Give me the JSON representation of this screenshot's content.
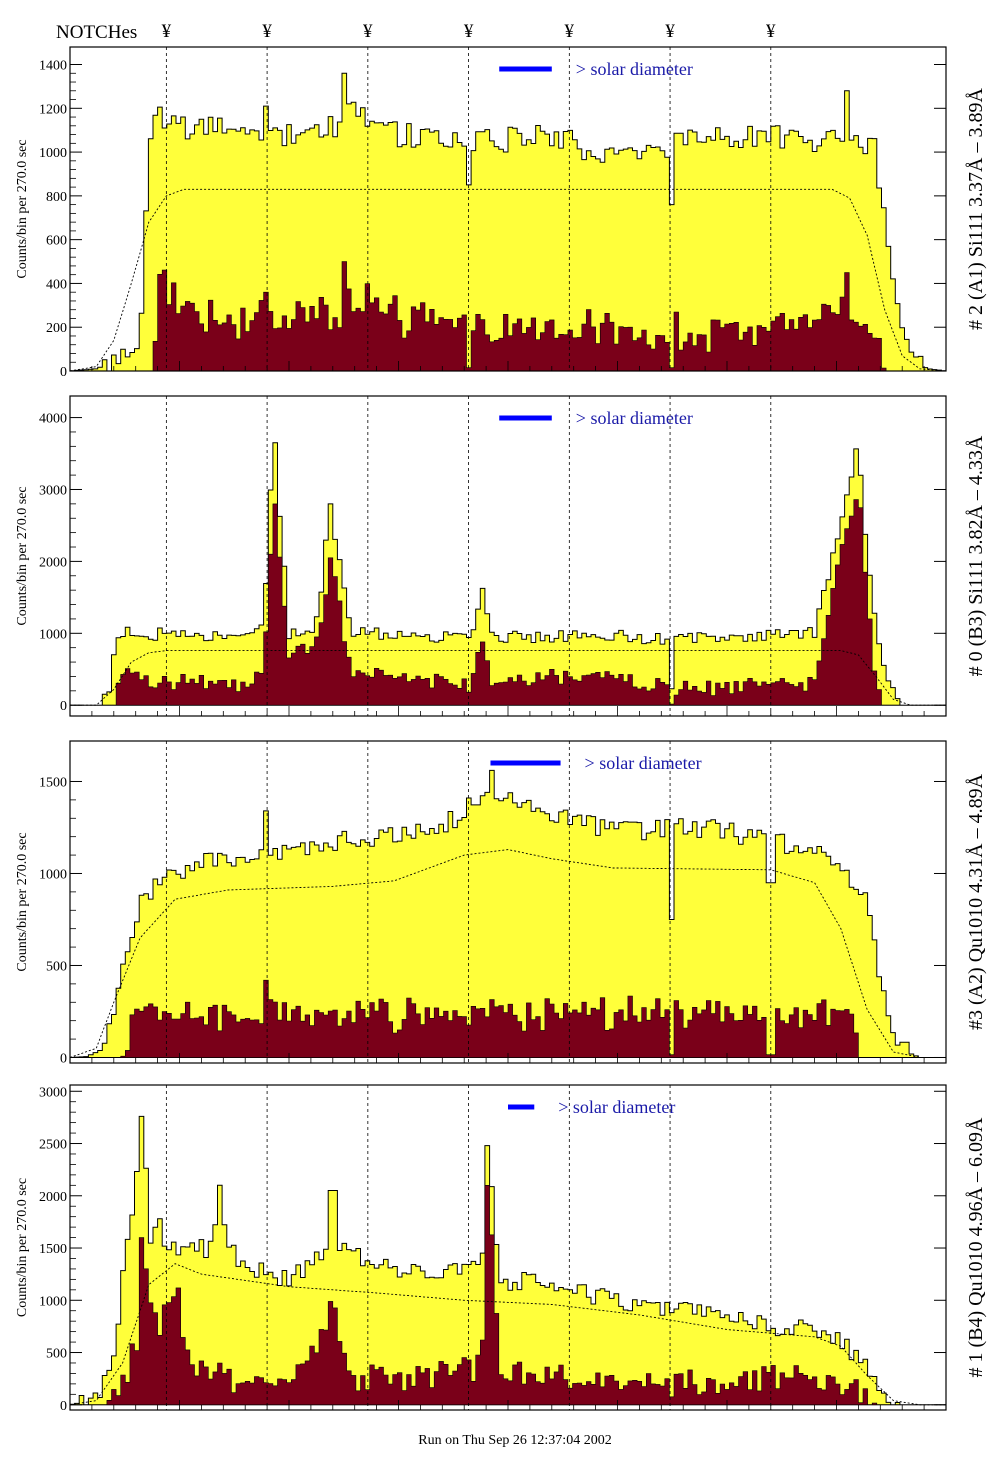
{
  "header": {
    "notches_label": "NOTCHes",
    "notch_symbol": "¥",
    "notch_count": 7,
    "run_stamp": "Run on Thu Sep 26 12:37:04 2002"
  },
  "colors": {
    "fill_total": "#ffff3a",
    "fill_sub": "#7a0019",
    "bar_blue": "#0000ff",
    "label_blue": "#1a1aa8",
    "text": "#000000"
  },
  "chart_data": [
    {
      "type": "area",
      "title": "# 2 (A1) Si111  3.37Å – 3.89Å",
      "ylabel": "Counts/bin per    270.0 sec",
      "annotation": "> solar diameter",
      "ylim": [
        0,
        1480
      ],
      "yticks": [
        0,
        200,
        400,
        600,
        800,
        1000,
        1200,
        1400
      ],
      "ytick_labels": [
        "0",
        "200",
        "400",
        "600",
        "800",
        "1000",
        "1200",
        "1400"
      ],
      "solar_bar_span": [
        0.49,
        0.55
      ],
      "notch_x": [
        0.11,
        0.225,
        0.34,
        0.455,
        0.57,
        0.685,
        0.8
      ],
      "total_profile": [
        [
          0.0,
          0
        ],
        [
          0.03,
          10
        ],
        [
          0.06,
          60
        ],
        [
          0.08,
          160
        ],
        [
          0.09,
          1000
        ],
        [
          0.1,
          1180
        ],
        [
          0.13,
          1110
        ],
        [
          0.22,
          1080
        ],
        [
          0.3,
          1110
        ],
        [
          0.32,
          1200
        ],
        [
          0.36,
          1090
        ],
        [
          0.45,
          1050
        ],
        [
          0.55,
          1070
        ],
        [
          0.6,
          1000
        ],
        [
          0.75,
          1060
        ],
        [
          0.9,
          1060
        ],
        [
          0.92,
          1000
        ],
        [
          0.94,
          380
        ],
        [
          0.96,
          40
        ],
        [
          0.98,
          10
        ],
        [
          1.0,
          0
        ]
      ],
      "total_noise": 60,
      "sub_profile": [
        [
          0.0,
          0
        ],
        [
          0.08,
          0
        ],
        [
          0.095,
          0
        ],
        [
          0.1,
          420
        ],
        [
          0.13,
          300
        ],
        [
          0.2,
          230
        ],
        [
          0.32,
          280
        ],
        [
          0.34,
          360
        ],
        [
          0.36,
          240
        ],
        [
          0.5,
          200
        ],
        [
          0.62,
          180
        ],
        [
          0.8,
          170
        ],
        [
          0.87,
          300
        ],
        [
          0.91,
          250
        ],
        [
          0.93,
          0
        ],
        [
          1.0,
          0
        ]
      ],
      "sub_noise": 70,
      "spikes": [
        [
          0.225,
          1210,
          360
        ],
        [
          0.315,
          1360,
          500
        ],
        [
          0.885,
          1280,
          450
        ]
      ],
      "dips": [
        [
          0.455,
          850
        ],
        [
          0.685,
          760
        ]
      ],
      "model_curve": [
        [
          0.0,
          0
        ],
        [
          0.03,
          20
        ],
        [
          0.05,
          140
        ],
        [
          0.07,
          400
        ],
        [
          0.09,
          680
        ],
        [
          0.11,
          800
        ],
        [
          0.13,
          830
        ],
        [
          0.87,
          830
        ],
        [
          0.89,
          790
        ],
        [
          0.91,
          620
        ],
        [
          0.93,
          280
        ],
        [
          0.95,
          70
        ],
        [
          0.97,
          10
        ],
        [
          1.0,
          0
        ]
      ]
    },
    {
      "type": "area",
      "title": "# 0 (B3) Si111  3.82Å – 4.33Å",
      "ylabel": "Counts/bin per    270.0 sec",
      "annotation": "> solar diameter",
      "ylim": [
        -150,
        4300
      ],
      "yticks": [
        0,
        1000,
        2000,
        3000,
        4000
      ],
      "ytick_labels": [
        "0",
        "1000",
        "2000",
        "3000",
        "4000"
      ],
      "solar_bar_span": [
        0.49,
        0.55
      ],
      "notch_x": [
        0.11,
        0.225,
        0.34,
        0.455,
        0.57,
        0.685,
        0.8
      ],
      "total_profile": [
        [
          0.0,
          0
        ],
        [
          0.03,
          0
        ],
        [
          0.045,
          150
        ],
        [
          0.05,
          700
        ],
        [
          0.06,
          1000
        ],
        [
          0.2,
          950
        ],
        [
          0.22,
          1200
        ],
        [
          0.235,
          3400
        ],
        [
          0.25,
          1000
        ],
        [
          0.28,
          1100
        ],
        [
          0.3,
          2600
        ],
        [
          0.32,
          1000
        ],
        [
          0.46,
          950
        ],
        [
          0.47,
          1700
        ],
        [
          0.48,
          950
        ],
        [
          0.62,
          950
        ],
        [
          0.63,
          1150
        ],
        [
          0.64,
          900
        ],
        [
          0.85,
          1000
        ],
        [
          0.88,
          2500
        ],
        [
          0.9,
          3700
        ],
        [
          0.91,
          2000
        ],
        [
          0.93,
          400
        ],
        [
          0.95,
          0
        ],
        [
          1.0,
          0
        ]
      ],
      "total_noise": 90,
      "sub_profile": [
        [
          0.0,
          0
        ],
        [
          0.05,
          0
        ],
        [
          0.06,
          480
        ],
        [
          0.08,
          350
        ],
        [
          0.2,
          300
        ],
        [
          0.22,
          500
        ],
        [
          0.235,
          2700
        ],
        [
          0.25,
          700
        ],
        [
          0.28,
          900
        ],
        [
          0.3,
          2000
        ],
        [
          0.32,
          450
        ],
        [
          0.46,
          300
        ],
        [
          0.47,
          900
        ],
        [
          0.48,
          300
        ],
        [
          0.63,
          450
        ],
        [
          0.65,
          250
        ],
        [
          0.85,
          300
        ],
        [
          0.88,
          2200
        ],
        [
          0.9,
          3000
        ],
        [
          0.91,
          1600
        ],
        [
          0.92,
          200
        ],
        [
          0.93,
          0
        ],
        [
          1.0,
          0
        ]
      ],
      "sub_noise": 90,
      "spikes": [
        [
          0.233,
          3650,
          2800
        ],
        [
          0.298,
          2800,
          2050
        ]
      ],
      "dips": [
        [
          0.685,
          230
        ]
      ],
      "model_curve": [
        [
          0.0,
          0
        ],
        [
          0.03,
          0
        ],
        [
          0.05,
          220
        ],
        [
          0.07,
          600
        ],
        [
          0.09,
          730
        ],
        [
          0.11,
          760
        ],
        [
          0.88,
          760
        ],
        [
          0.9,
          700
        ],
        [
          0.92,
          400
        ],
        [
          0.94,
          80
        ],
        [
          0.96,
          0
        ],
        [
          1.0,
          0
        ]
      ]
    },
    {
      "type": "area",
      "title": "#3 (A2) Qu1010  4.31Å – 4.89Å",
      "ylabel": "Counts/bin per    270.0 sec",
      "annotation": "> solar diameter",
      "ylim": [
        -30,
        1720
      ],
      "yticks": [
        0,
        500,
        1000,
        1500
      ],
      "ytick_labels": [
        "0",
        "500",
        "1000",
        "1500"
      ],
      "solar_bar_span": [
        0.48,
        0.56
      ],
      "notch_x": [
        0.11,
        0.225,
        0.34,
        0.455,
        0.57,
        0.685,
        0.8
      ],
      "total_profile": [
        [
          0.0,
          0
        ],
        [
          0.02,
          5
        ],
        [
          0.04,
          60
        ],
        [
          0.06,
          500
        ],
        [
          0.08,
          820
        ],
        [
          0.1,
          960
        ],
        [
          0.15,
          1050
        ],
        [
          0.25,
          1130
        ],
        [
          0.35,
          1200
        ],
        [
          0.44,
          1290
        ],
        [
          0.47,
          1420
        ],
        [
          0.5,
          1420
        ],
        [
          0.53,
          1360
        ],
        [
          0.58,
          1270
        ],
        [
          0.65,
          1230
        ],
        [
          0.72,
          1250
        ],
        [
          0.78,
          1200
        ],
        [
          0.84,
          1140
        ],
        [
          0.88,
          1050
        ],
        [
          0.91,
          860
        ],
        [
          0.93,
          300
        ],
        [
          0.95,
          40
        ],
        [
          0.97,
          0
        ],
        [
          1.0,
          0
        ]
      ],
      "total_noise": 55,
      "sub_profile": [
        [
          0.0,
          0
        ],
        [
          0.06,
          0
        ],
        [
          0.075,
          200
        ],
        [
          0.1,
          270
        ],
        [
          0.2,
          200
        ],
        [
          0.3,
          250
        ],
        [
          0.4,
          230
        ],
        [
          0.6,
          230
        ],
        [
          0.7,
          240
        ],
        [
          0.85,
          250
        ],
        [
          0.89,
          230
        ],
        [
          0.91,
          0
        ],
        [
          1.0,
          0
        ]
      ],
      "sub_noise": 70,
      "spikes": [
        [
          0.225,
          1340,
          420
        ],
        [
          0.48,
          1560,
          260
        ]
      ],
      "dips": [
        [
          0.685,
          750
        ],
        [
          0.8,
          950
        ]
      ],
      "model_curve": [
        [
          0.0,
          0
        ],
        [
          0.03,
          50
        ],
        [
          0.05,
          300
        ],
        [
          0.08,
          650
        ],
        [
          0.12,
          860
        ],
        [
          0.18,
          910
        ],
        [
          0.3,
          930
        ],
        [
          0.37,
          960
        ],
        [
          0.45,
          1100
        ],
        [
          0.5,
          1130
        ],
        [
          0.55,
          1080
        ],
        [
          0.62,
          1030
        ],
        [
          0.8,
          1020
        ],
        [
          0.85,
          950
        ],
        [
          0.88,
          700
        ],
        [
          0.91,
          260
        ],
        [
          0.94,
          30
        ],
        [
          0.97,
          0
        ],
        [
          1.0,
          0
        ]
      ]
    },
    {
      "type": "area",
      "title": "# 1 (B4) Qu1010 4.96Å – 6.09Å",
      "ylabel": "Counts/bin per    270.0 sec",
      "annotation": "> solar diameter",
      "ylim": [
        -50,
        3060
      ],
      "yticks": [
        0,
        500,
        1000,
        1500,
        2000,
        2500,
        3000
      ],
      "ytick_labels": [
        "0",
        "500",
        "1000",
        "1500",
        "2000",
        "2500",
        "3000"
      ],
      "solar_bar_span": [
        0.5,
        0.53
      ],
      "notch_x": [
        0.11,
        0.225,
        0.34,
        0.455,
        0.57,
        0.685,
        0.8
      ],
      "total_profile": [
        [
          0.0,
          0
        ],
        [
          0.03,
          50
        ],
        [
          0.05,
          400
        ],
        [
          0.06,
          1200
        ],
        [
          0.07,
          1700
        ],
        [
          0.08,
          2400
        ],
        [
          0.09,
          1600
        ],
        [
          0.1,
          1800
        ],
        [
          0.11,
          1500
        ],
        [
          0.13,
          1450
        ],
        [
          0.18,
          1550
        ],
        [
          0.2,
          1300
        ],
        [
          0.25,
          1200
        ],
        [
          0.3,
          1500
        ],
        [
          0.33,
          1400
        ],
        [
          0.4,
          1250
        ],
        [
          0.47,
          1300
        ],
        [
          0.48,
          2300
        ],
        [
          0.49,
          1200
        ],
        [
          0.55,
          1150
        ],
        [
          0.6,
          1050
        ],
        [
          0.7,
          900
        ],
        [
          0.78,
          780
        ],
        [
          0.85,
          700
        ],
        [
          0.88,
          600
        ],
        [
          0.91,
          350
        ],
        [
          0.93,
          80
        ],
        [
          0.95,
          0
        ],
        [
          1.0,
          0
        ]
      ],
      "total_noise": 95,
      "sub_profile": [
        [
          0.0,
          0
        ],
        [
          0.04,
          0
        ],
        [
          0.06,
          250
        ],
        [
          0.08,
          600
        ],
        [
          0.085,
          1500
        ],
        [
          0.1,
          700
        ],
        [
          0.12,
          1100
        ],
        [
          0.14,
          300
        ],
        [
          0.2,
          250
        ],
        [
          0.27,
          300
        ],
        [
          0.3,
          1000
        ],
        [
          0.32,
          250
        ],
        [
          0.4,
          250
        ],
        [
          0.47,
          400
        ],
        [
          0.48,
          1900
        ],
        [
          0.49,
          300
        ],
        [
          0.55,
          250
        ],
        [
          0.65,
          220
        ],
        [
          0.75,
          200
        ],
        [
          0.85,
          300
        ],
        [
          0.9,
          200
        ],
        [
          0.92,
          0
        ],
        [
          1.0,
          0
        ]
      ],
      "sub_noise": 110,
      "spikes": [
        [
          0.083,
          2760,
          1600
        ],
        [
          0.478,
          2480,
          2100
        ],
        [
          0.17,
          2100,
          400
        ],
        [
          0.3,
          2050,
          800
        ]
      ],
      "dips": [],
      "model_curve": [
        [
          0.0,
          0
        ],
        [
          0.03,
          40
        ],
        [
          0.06,
          400
        ],
        [
          0.09,
          1150
        ],
        [
          0.12,
          1350
        ],
        [
          0.15,
          1250
        ],
        [
          0.25,
          1130
        ],
        [
          0.35,
          1070
        ],
        [
          0.45,
          1000
        ],
        [
          0.55,
          960
        ],
        [
          0.65,
          860
        ],
        [
          0.75,
          720
        ],
        [
          0.85,
          650
        ],
        [
          0.88,
          560
        ],
        [
          0.91,
          280
        ],
        [
          0.94,
          40
        ],
        [
          0.97,
          0
        ],
        [
          1.0,
          0
        ]
      ]
    }
  ]
}
